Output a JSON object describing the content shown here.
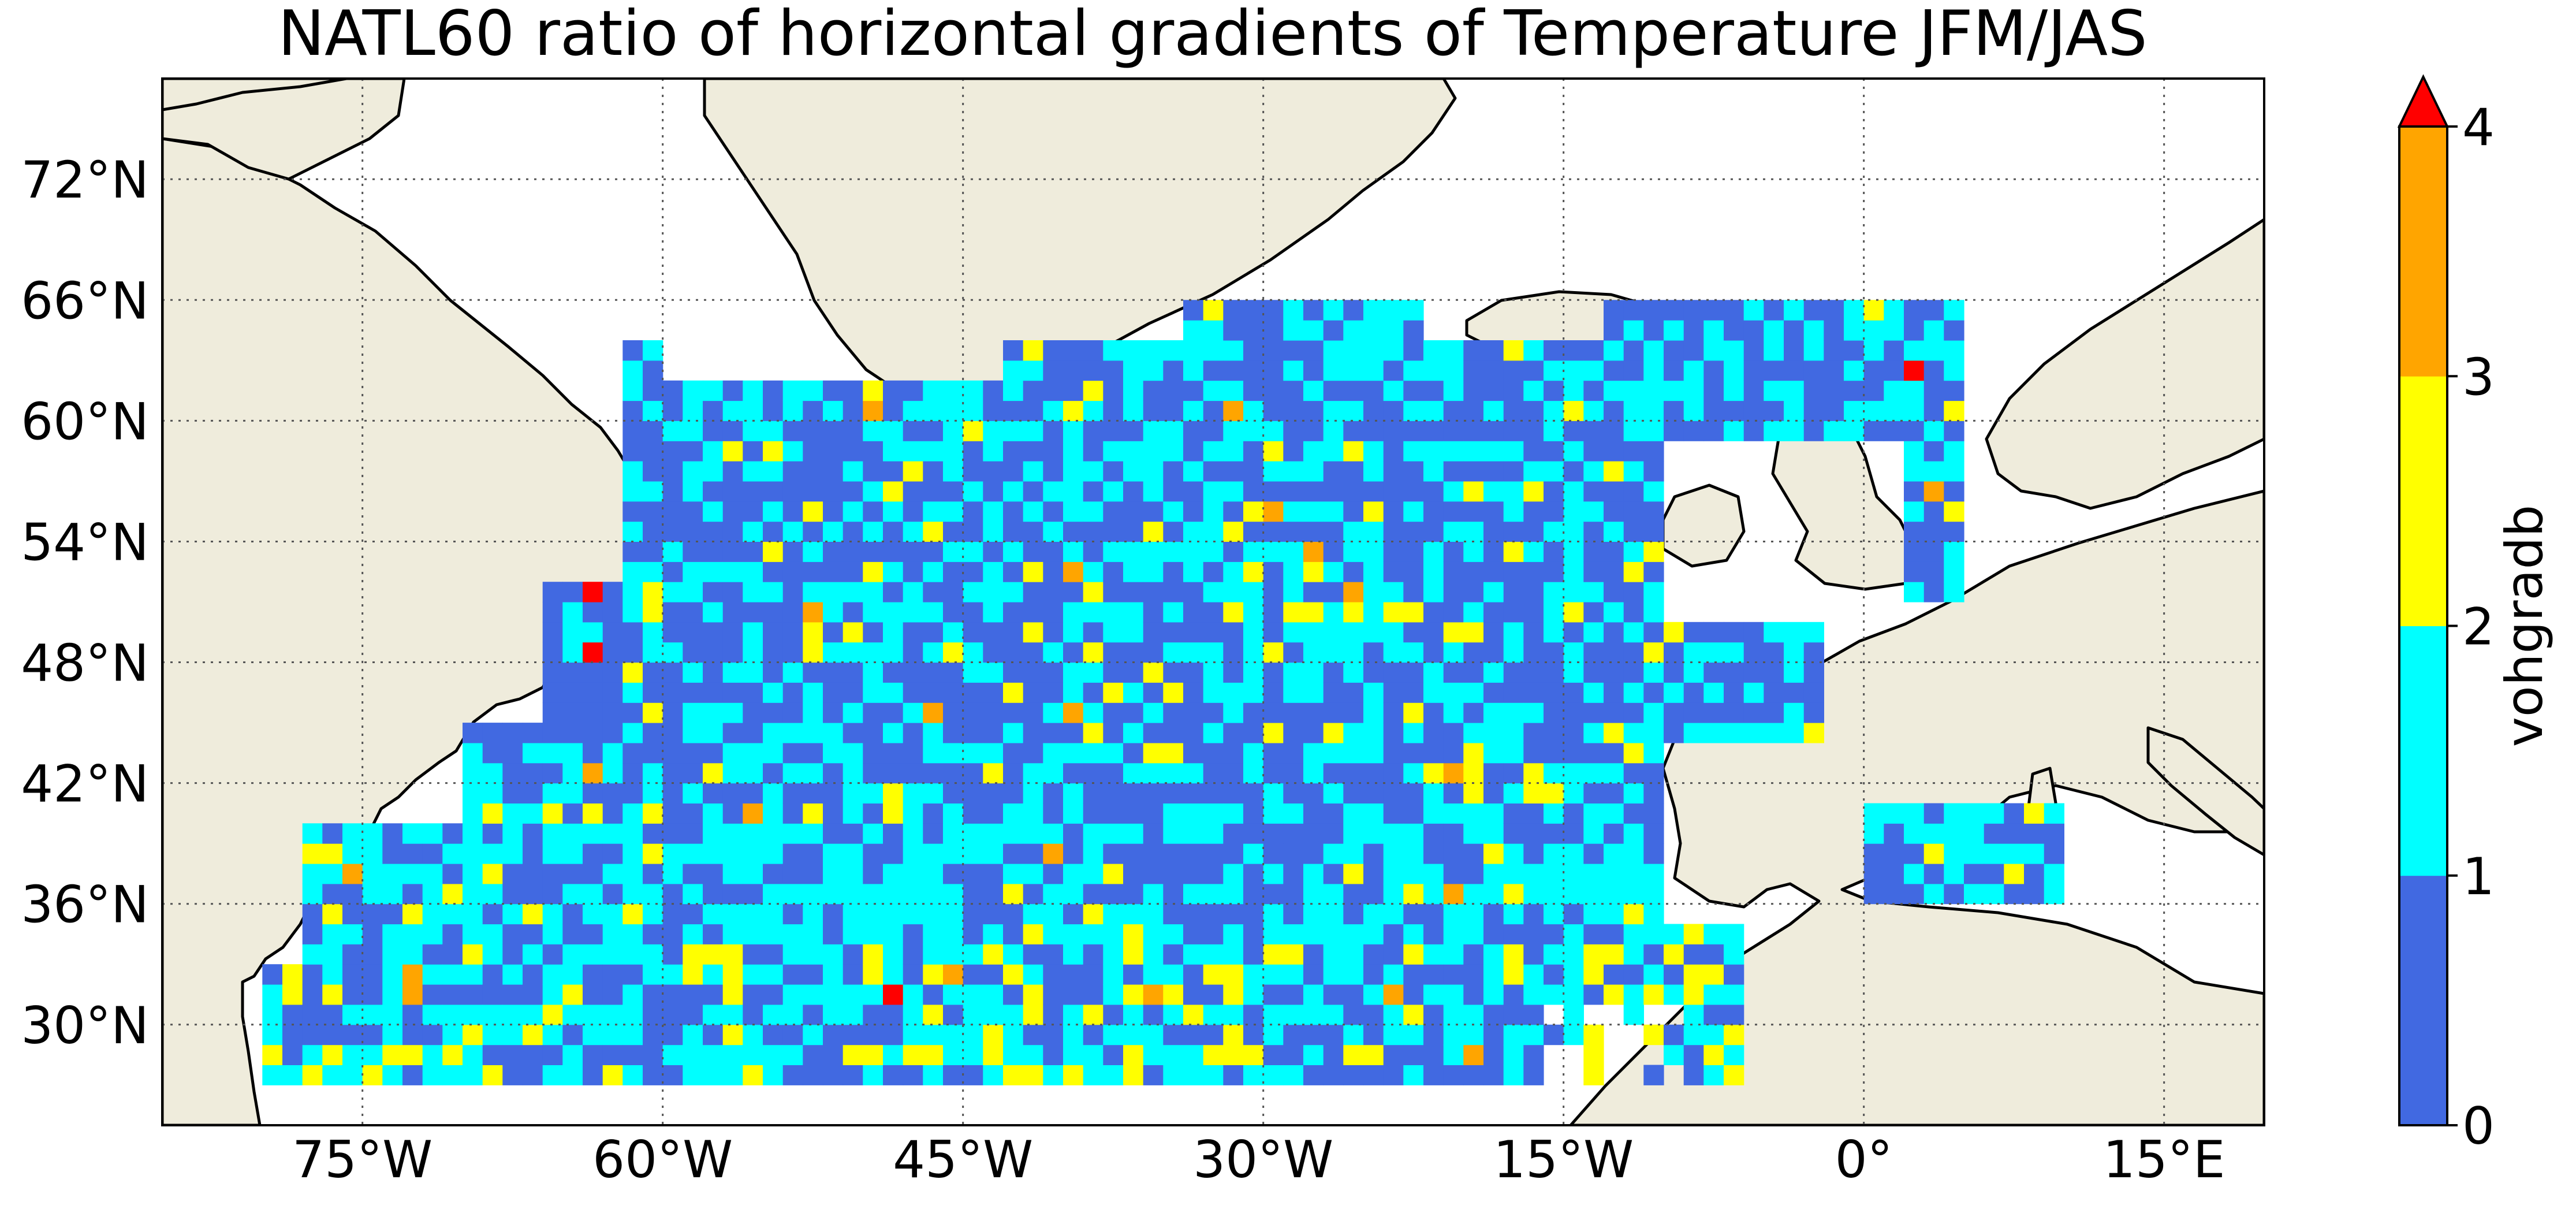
{
  "title": "NATL60 ratio of horizontal gradients of Temperature JFM/JAS",
  "map": {
    "lon_range": [
      -85,
      20
    ],
    "lat_range": [
      25,
      77
    ],
    "lon_ticks": [
      {
        "value": -75,
        "label": "75°W"
      },
      {
        "value": -60,
        "label": "60°W"
      },
      {
        "value": -45,
        "label": "45°W"
      },
      {
        "value": -30,
        "label": "30°W"
      },
      {
        "value": -15,
        "label": "15°W"
      },
      {
        "value": 0,
        "label": "0°"
      },
      {
        "value": 15,
        "label": "15°E"
      }
    ],
    "lat_ticks": [
      {
        "value": 30,
        "label": "30°N"
      },
      {
        "value": 36,
        "label": "36°N"
      },
      {
        "value": 42,
        "label": "42°N"
      },
      {
        "value": 48,
        "label": "48°N"
      },
      {
        "value": 54,
        "label": "54°N"
      },
      {
        "value": 60,
        "label": "60°N"
      },
      {
        "value": 66,
        "label": "66°N"
      },
      {
        "value": 72,
        "label": "72°N"
      }
    ],
    "gridlines": "dotted",
    "land_color": "#efecdc",
    "ocean_color": "#ffffff",
    "coastline_color": "#000000"
  },
  "colorbar": {
    "label": "vohgradb",
    "ticks": [
      "0",
      "1",
      "2",
      "3",
      "4"
    ],
    "extend": "max",
    "bins": [
      {
        "range": [
          0,
          1
        ],
        "color": "#4169e1"
      },
      {
        "range": [
          1,
          2
        ],
        "color": "#00ffff"
      },
      {
        "range": [
          2,
          3
        ],
        "color": "#ffff00"
      },
      {
        "range": [
          3,
          4
        ],
        "color": "#ffa500"
      },
      {
        "range": [
          4,
          null
        ],
        "color": "#ff0000"
      }
    ]
  },
  "chart_data": {
    "type": "heatmap",
    "variable": "vohgradb",
    "cell_size_deg": 1,
    "value_classes": [
      "0-1",
      "1-2",
      "2-3",
      "3-4",
      ">4"
    ]
  }
}
